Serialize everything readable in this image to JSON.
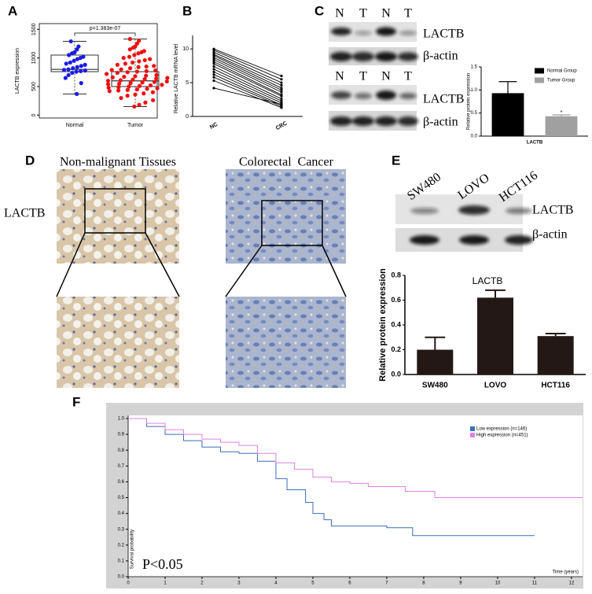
{
  "panel_labels": [
    "A",
    "B",
    "C",
    "D",
    "E",
    "F"
  ],
  "blot_c": {
    "lanes": [
      "N",
      "T",
      "N",
      "T",
      "N",
      "T",
      "N",
      "T"
    ],
    "bands": [
      "LACTB",
      "β-actin",
      "LACTB",
      "β-actin"
    ]
  },
  "ihc": {
    "titles": [
      "Non-malignant Tissues",
      "Colorectal  Cancer"
    ],
    "row_label": "LACTB"
  },
  "blot_e": {
    "lanes": [
      "SW480",
      "LOVO",
      "HCT116"
    ],
    "bands": [
      "LACTB",
      "β-actin"
    ]
  },
  "chart_data": [
    {
      "type": "box",
      "ylabel": "LACTB expression",
      "annotation": "p=1.383e-07",
      "categories": [
        "Normal",
        "Tumor"
      ],
      "ylim": [
        -50,
        1600
      ],
      "yticks": [
        0,
        500,
        1000,
        1500
      ],
      "series": [
        {
          "color": "#1a1ae6",
          "box": {
            "low": 370,
            "q1": 760,
            "median": 800,
            "q3": 1050,
            "high": 1290
          },
          "values": [
            1290,
            1200,
            1150,
            1100,
            1080,
            1050,
            1020,
            1000,
            980,
            950,
            920,
            900,
            880,
            860,
            840,
            820,
            800,
            790,
            780,
            770,
            760,
            740,
            700,
            650,
            560,
            370
          ]
        },
        {
          "color": "#ee1111",
          "box": {
            "low": 150,
            "q1": 500,
            "median": 600,
            "q3": 760,
            "high": 1330
          },
          "values": [
            1330,
            1300,
            1250,
            1200,
            1180,
            1150,
            1120,
            1100,
            1080,
            1050,
            1020,
            1000,
            980,
            960,
            940,
            920,
            900,
            880,
            860,
            850,
            840,
            820,
            800,
            790,
            780,
            770,
            760,
            750,
            740,
            720,
            700,
            690,
            680,
            670,
            660,
            650,
            640,
            630,
            620,
            610,
            600,
            590,
            580,
            570,
            560,
            550,
            540,
            530,
            520,
            510,
            500,
            490,
            480,
            470,
            460,
            450,
            440,
            430,
            420,
            400,
            380,
            360,
            340,
            300,
            260,
            220,
            180,
            150
          ]
        }
      ]
    },
    {
      "type": "paired",
      "ylabel": "Relative LACTB mRNA level",
      "categories": [
        "NC",
        "CRC"
      ],
      "ylim": [
        0,
        12
      ],
      "yticks": [
        0,
        5,
        10
      ],
      "color": "#000000",
      "series": [
        {
          "values": [
            10,
            6
          ]
        },
        {
          "values": [
            9.8,
            5.5
          ]
        },
        {
          "values": [
            9.5,
            5
          ]
        },
        {
          "values": [
            9.2,
            4.6
          ]
        },
        {
          "values": [
            9,
            4.2
          ]
        },
        {
          "values": [
            8.7,
            3.9
          ]
        },
        {
          "values": [
            8.4,
            3.6
          ]
        },
        {
          "values": [
            8.1,
            3.2
          ]
        },
        {
          "values": [
            7.8,
            3
          ]
        },
        {
          "values": [
            7.4,
            2.6
          ]
        },
        {
          "values": [
            7,
            2.3
          ]
        },
        {
          "values": [
            6.6,
            2
          ]
        },
        {
          "values": [
            6.2,
            1.7
          ]
        },
        {
          "values": [
            5.8,
            1.5
          ]
        },
        {
          "values": [
            5.3,
            1.3
          ]
        },
        {
          "values": [
            4.2,
            1.8
          ]
        }
      ]
    },
    {
      "type": "bar",
      "ylabel": "Relative protein expression",
      "annotation": "*",
      "categories": [
        "LACTB"
      ],
      "legend": "upper right",
      "ylim": [
        0,
        1.5
      ],
      "yticks": [
        {
          "value": 0,
          "label": "0.0"
        },
        {
          "value": 0.5,
          "label": "0.5"
        },
        {
          "value": 1,
          "label": "1.0"
        },
        {
          "value": 1.5,
          "label": "1.5"
        }
      ],
      "series": [
        {
          "name": "Normal Group",
          "color": "#000000",
          "values": [
            0.93
          ],
          "errors": [
            0.25
          ]
        },
        {
          "name": "Tumor Group",
          "color": "#a0a0a0",
          "values": [
            0.43
          ],
          "errors": [
            0.03
          ]
        }
      ]
    },
    {
      "type": "ihc"
    },
    {
      "type": "bar",
      "title": "LACTB",
      "ylabel": "Relative protein expression",
      "categories": [
        "SW480",
        "LOVO",
        "HCT116"
      ],
      "color": "#231815",
      "values": [
        0.2,
        0.62,
        0.31
      ],
      "errors": [
        0.1,
        0.06,
        0.02
      ],
      "ylim": [
        0,
        0.8
      ],
      "yticks": [
        {
          "value": 0,
          "label": "0.0"
        },
        {
          "value": 0.2,
          "label": "0.2"
        },
        {
          "value": 0.4,
          "label": "0.4"
        },
        {
          "value": 0.6,
          "label": "0.6"
        },
        {
          "value": 0.8,
          "label": "0.8"
        }
      ]
    },
    {
      "type": "step",
      "ylabel": "Survival probability",
      "xlabel": "Time (years)",
      "annotation": "P<0.05",
      "legend": "upper right",
      "xlim": [
        0,
        12.3
      ],
      "xticks": [
        0,
        1,
        2,
        3,
        4,
        5,
        6,
        7,
        8,
        9,
        10,
        11,
        12
      ],
      "ylim": [
        0,
        1.02
      ],
      "yticks": [
        {
          "value": 0,
          "label": "0.0"
        },
        {
          "value": 0.1,
          "label": "0.1"
        },
        {
          "value": 0.2,
          "label": "0.2"
        },
        {
          "value": 0.3,
          "label": "0.3"
        },
        {
          "value": 0.4,
          "label": "0.4"
        },
        {
          "value": 0.5,
          "label": "0.5"
        },
        {
          "value": 0.6,
          "label": "0.6"
        },
        {
          "value": 0.7,
          "label": "0.7"
        },
        {
          "value": 0.8,
          "label": "0.8"
        },
        {
          "value": 0.9,
          "label": "0.9"
        },
        {
          "value": 1,
          "label": "1.0"
        }
      ],
      "series": [
        {
          "name": "Low expression (n=146)",
          "color": "#3b6fb6",
          "x": [
            0,
            0.5,
            1,
            1.5,
            2,
            2.5,
            3,
            3.5,
            4,
            4.3,
            4.8,
            5,
            5.3,
            5.5,
            6.8,
            7,
            7.7,
            11
          ],
          "values": [
            1,
            0.95,
            0.9,
            0.86,
            0.82,
            0.79,
            0.78,
            0.73,
            0.62,
            0.55,
            0.47,
            0.4,
            0.36,
            0.32,
            0.32,
            0.31,
            0.26,
            0.26
          ]
        },
        {
          "name": "High expression (n=451)",
          "color": "#e080e0",
          "x": [
            0,
            0.5,
            1,
            1.5,
            2,
            2.5,
            3,
            3.5,
            4,
            4.5,
            5,
            5.5,
            6,
            6.5,
            7,
            7.5,
            8.3,
            12.3
          ],
          "values": [
            1,
            0.97,
            0.93,
            0.9,
            0.87,
            0.85,
            0.83,
            0.78,
            0.72,
            0.68,
            0.63,
            0.6,
            0.59,
            0.57,
            0.57,
            0.54,
            0.5,
            0.5
          ]
        }
      ]
    }
  ]
}
